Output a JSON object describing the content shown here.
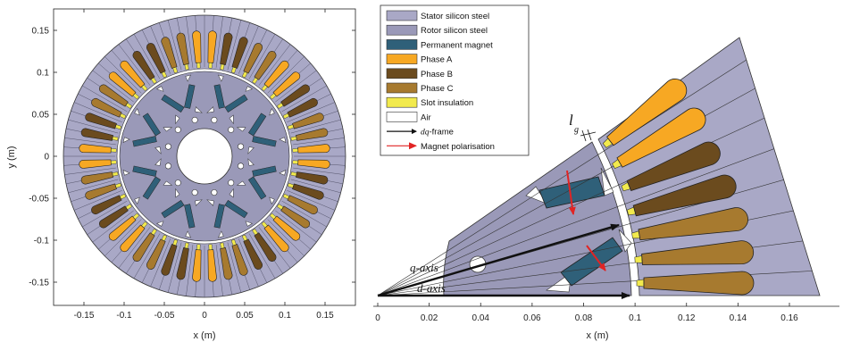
{
  "colors": {
    "stator": "#a9a8c6",
    "rotor": "#9a99b8",
    "magnet": "#2f6079",
    "phase_a": "#f7a823",
    "phase_b": "#6b4b1e",
    "phase_c": "#a77a2f",
    "slot_insulation": "#f2ea4d",
    "air": "#ffffff",
    "dq_arrow": "#111111",
    "polarisation_arrow": "#e12424"
  },
  "left_plot": {
    "x_label": "x (m)",
    "y_label": "y (m)",
    "x_ticks": [
      "-0.15",
      "-0.1",
      "-0.05",
      "0",
      "0.05",
      "0.1",
      "0.15"
    ],
    "y_ticks": [
      "0.15",
      "0.1",
      "0.05",
      "0",
      "-0.05",
      "-0.1",
      "-0.15"
    ]
  },
  "right_plot": {
    "x_label": "x (m)",
    "x_ticks": [
      "0",
      "0.02",
      "0.04",
      "0.06",
      "0.08",
      "0.1",
      "0.12",
      "0.14",
      "0.16"
    ]
  },
  "legend": {
    "items": [
      {
        "label": "Stator silicon steel",
        "kind": "box",
        "color_key": "stator"
      },
      {
        "label": "Rotor silicon steel",
        "kind": "box",
        "color_key": "rotor"
      },
      {
        "label": "Permanent magnet",
        "kind": "box",
        "color_key": "magnet"
      },
      {
        "label": "Phase A",
        "kind": "box",
        "color_key": "phase_a"
      },
      {
        "label": "Phase B",
        "kind": "box",
        "color_key": "phase_b"
      },
      {
        "label": "Phase C",
        "kind": "box",
        "color_key": "phase_c"
      },
      {
        "label": "Slot insulation",
        "kind": "box",
        "color_key": "slot_insulation"
      },
      {
        "label": "Air",
        "kind": "box",
        "color_key": "air"
      },
      {
        "label_prefix": "dq",
        "label": "-frame",
        "kind": "arrow",
        "color_key": "dq_arrow"
      },
      {
        "label": "Magnet polarisation",
        "kind": "arrow",
        "color_key": "polarisation_arrow"
      }
    ]
  },
  "annotations": {
    "q_axis": "q-axis",
    "d_axis": "d-axis",
    "airgap_symbol": "l",
    "airgap_subscript": "g"
  }
}
